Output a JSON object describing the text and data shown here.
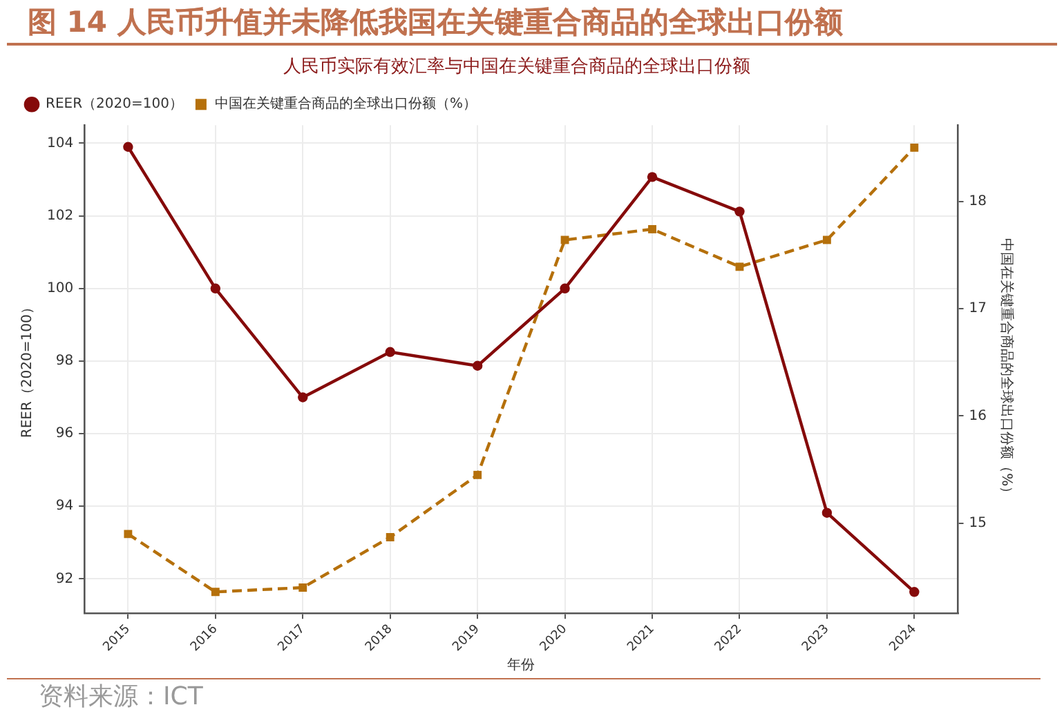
{
  "chart_data": {
    "type": "line",
    "title": "图 14 人民币升值并未降低我国在关键重合商品的全球出口份额",
    "subtitle": "人民币实际有效汇率与中国在关键重合商品的全球出口份额",
    "xlabel": "年份",
    "ylabel": "REER（2020=100）",
    "y2label": "中国在关键重合商品的全球出口份额（%）",
    "categories": [
      "2015",
      "2016",
      "2017",
      "2018",
      "2019",
      "2020",
      "2021",
      "2022",
      "2023",
      "2024"
    ],
    "series": [
      {
        "name": "REER（2020=100）",
        "color": "#850a0a",
        "marker": "circle",
        "line_style": "solid",
        "values": [
          103.9,
          100.0,
          97.0,
          98.25,
          97.87,
          100.0,
          103.07,
          102.12,
          93.82,
          91.64
        ]
      },
      {
        "name": "中国在关键重合商品的全球出口份额（%）",
        "color": "#b5700b",
        "marker": "square",
        "line_style": "dashed",
        "axis": "y2",
        "values": [
          14.9,
          14.36,
          14.4,
          14.87,
          15.45,
          17.64,
          17.74,
          17.39,
          17.64,
          18.5
        ]
      }
    ],
    "ylim": [
      91.05,
      104.5
    ],
    "yticks": [
      92,
      94,
      96,
      98,
      100,
      102,
      104
    ],
    "y2lim": [
      14.16,
      18.71
    ],
    "y2ticks": [
      15,
      16,
      17,
      18
    ],
    "grid": true,
    "legend": "top left",
    "annotations": [
      "资料来源：ICT"
    ]
  }
}
